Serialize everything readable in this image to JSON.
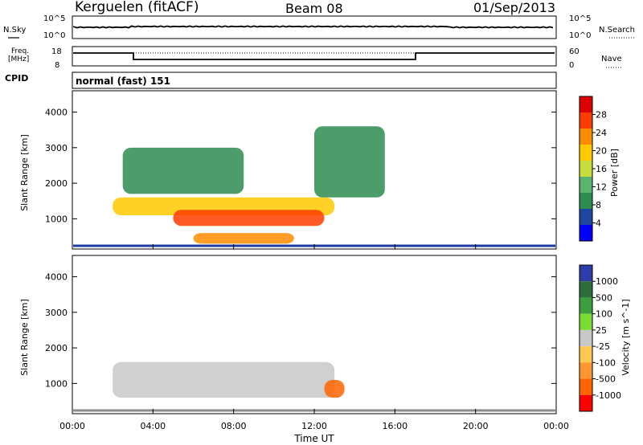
{
  "header": {
    "title": "Kerguelen (fitACF)",
    "beam": "Beam 08",
    "date": "01/Sep/2013"
  },
  "nsky_panel": {
    "left_label": "N.Sky",
    "right_label": "N.Search",
    "left_ticks": [
      "10^5",
      "10^0"
    ],
    "right_ticks": [
      "10^5",
      "10^0"
    ]
  },
  "freq_panel": {
    "left_label_1": "Freq.",
    "left_label_2": "[MHz]",
    "right_label": "Nave",
    "left_ticks": [
      "18",
      "8"
    ],
    "right_ticks": [
      "60",
      "0"
    ]
  },
  "cpid_panel": {
    "label": "CPID",
    "value": "normal (fast) 151"
  },
  "colors": {
    "power_scale": [
      "#0000ff",
      "#1e46a0",
      "#2d8c50",
      "#5ab46e",
      "#c8dc3c",
      "#ffc800",
      "#ff8c00",
      "#ff3c00",
      "#dc0000"
    ],
    "velocity_scale": [
      "#2c3ca8",
      "#2e6e3a",
      "#3c9e3c",
      "#7adc32",
      "#c8c8c8",
      "#ffc850",
      "#ff9632",
      "#ff6400",
      "#ff0000"
    ]
  },
  "chart_data": [
    {
      "type": "heatmap",
      "title": "Power",
      "xlabel": "",
      "ylabel": "Slant Range [km]",
      "y_ticks": [
        "1000",
        "2000",
        "3000",
        "4000"
      ],
      "ylim": [
        150,
        4600
      ],
      "colorbar": {
        "label": "Power [dB]",
        "ticks": [
          "4",
          "8",
          "12",
          "16",
          "20",
          "24",
          "28"
        ],
        "range": [
          0,
          32
        ]
      },
      "regions": [
        {
          "t_start": "02:00",
          "t_end": "13:00",
          "range_km": [
            1100,
            1600
          ],
          "power_db": 18
        },
        {
          "t_start": "05:00",
          "t_end": "12:30",
          "range_km": [
            800,
            1250
          ],
          "power_db": 26
        },
        {
          "t_start": "06:00",
          "t_end": "11:00",
          "range_km": [
            300,
            600
          ],
          "power_db": 24
        },
        {
          "t_start": "12:00",
          "t_end": "15:30",
          "range_km": [
            1600,
            3600
          ],
          "power_db": 10
        },
        {
          "t_start": "02:30",
          "t_end": "08:30",
          "range_km": [
            1700,
            3000
          ],
          "power_db": 8
        }
      ]
    },
    {
      "type": "heatmap",
      "title": "Velocity",
      "xlabel": "Time UT",
      "ylabel": "Slant Range [km]",
      "x_ticks": [
        "00:00",
        "04:00",
        "08:00",
        "12:00",
        "16:00",
        "20:00",
        "00:00"
      ],
      "y_ticks": [
        "1000",
        "2000",
        "3000",
        "4000"
      ],
      "ylim": [
        150,
        4600
      ],
      "colorbar": {
        "label": "Velocity [m s^-1]",
        "ticks": [
          "1000",
          "500",
          "100",
          "25",
          "-25",
          "-100",
          "-500",
          "-1000"
        ]
      },
      "regions": [
        {
          "t_start": "02:00",
          "t_end": "13:00",
          "range_km": [
            600,
            1600
          ],
          "velocity_ms": 0
        },
        {
          "t_start": "12:30",
          "t_end": "13:30",
          "range_km": [
            600,
            1100
          ],
          "velocity_ms": -300
        }
      ]
    }
  ]
}
